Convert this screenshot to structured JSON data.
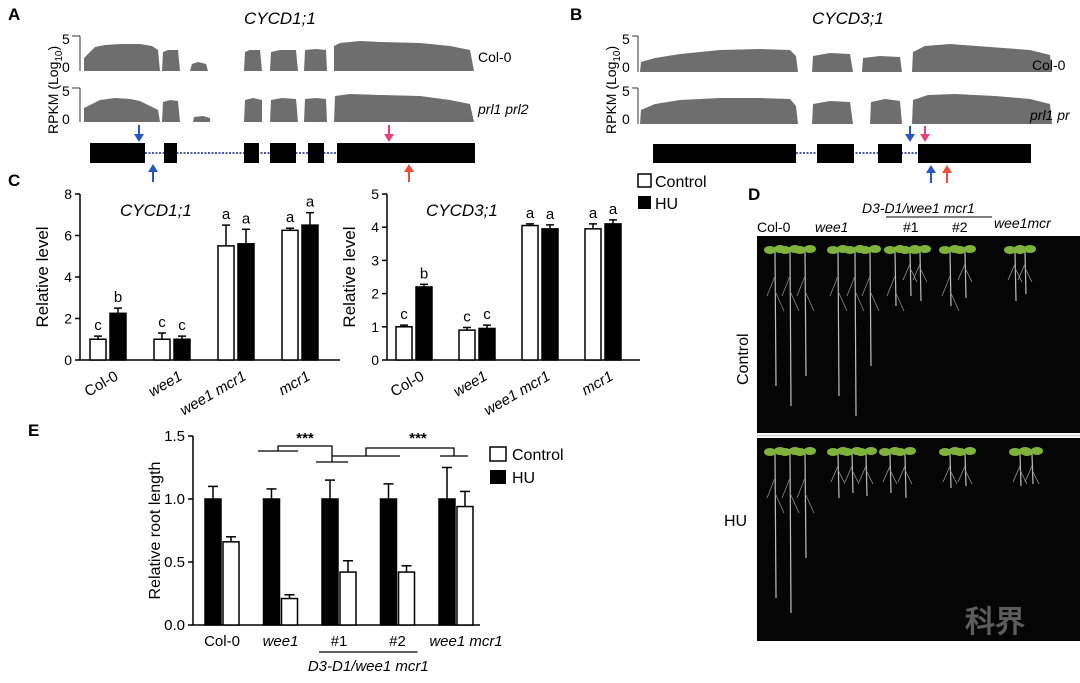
{
  "panels": {
    "A": {
      "label": "A",
      "gene": "CYCD1;1",
      "ylabel": "RPKM (Log10)",
      "ylabel_main": "RPKM (Log",
      "ylabel_sub": "10",
      "ylabel_end": ")",
      "tracks": [
        {
          "name": "Col-0",
          "ymax": "5",
          "ymin": "0"
        },
        {
          "name": "prl1 prl2",
          "ymax": "5",
          "ymin": "0"
        }
      ]
    },
    "B": {
      "label": "B",
      "gene": "CYCD3;1",
      "ylabel": "RPKM (Log10)",
      "ylabel_main": "RPKM (Log",
      "ylabel_sub": "10",
      "ylabel_end": ")",
      "tracks": [
        {
          "name": "Col-0",
          "ymax": "5",
          "ymin": "0"
        },
        {
          "name": "prl1 pr",
          "ymax": "5",
          "ymin": "0"
        }
      ]
    },
    "C": {
      "label": "C"
    },
    "D": {
      "label": "D",
      "group_header": "D3-D1/wee1 mcr1",
      "columns": [
        "Col-0",
        "wee1",
        "#1",
        "#2",
        "wee1mcr"
      ],
      "rows": [
        "Control",
        "HU"
      ]
    },
    "E": {
      "label": "E"
    }
  },
  "legend": {
    "control": "Control",
    "hu": "HU"
  },
  "colors": {
    "control_fill": "#ffffff",
    "hu_fill": "#000000",
    "coverage": "#6e6e6e",
    "photo_bg": "#050505",
    "seedling": "#7fb23a"
  },
  "watermark": "科界",
  "chart_data": [
    {
      "type": "bar",
      "panel": "C-left",
      "title": "CYCD1;1",
      "ylabel": "Relative level",
      "ylim": [
        0,
        8
      ],
      "yticks": [
        "0",
        "2",
        "4",
        "6",
        "8"
      ],
      "categories": [
        "Col-0",
        "wee1",
        "wee1 mcr1",
        "mcr1"
      ],
      "series": [
        {
          "name": "Control",
          "values": [
            1.0,
            1.0,
            5.5,
            6.25
          ],
          "errors": [
            0.15,
            0.3,
            1.0,
            0.1
          ],
          "letters": [
            "c",
            "c",
            "a",
            "a"
          ]
        },
        {
          "name": "HU",
          "values": [
            2.25,
            1.0,
            5.6,
            6.5
          ],
          "errors": [
            0.25,
            0.15,
            0.7,
            0.6
          ],
          "letters": [
            "b",
            "c",
            "a",
            "a"
          ]
        }
      ]
    },
    {
      "type": "bar",
      "panel": "C-right",
      "title": "CYCD3;1",
      "ylabel": "Relative level",
      "ylim": [
        0,
        5
      ],
      "yticks": [
        "0",
        "1",
        "2",
        "3",
        "4",
        "5"
      ],
      "categories": [
        "Col-0",
        "wee1",
        "wee1 mcr1",
        "mcr1"
      ],
      "series": [
        {
          "name": "Control",
          "values": [
            1.0,
            0.9,
            4.05,
            3.95
          ],
          "errors": [
            0.05,
            0.08,
            0.05,
            0.15
          ],
          "letters": [
            "c",
            "c",
            "a",
            "a"
          ]
        },
        {
          "name": "HU",
          "values": [
            2.2,
            0.95,
            3.95,
            4.1
          ],
          "errors": [
            0.08,
            0.1,
            0.12,
            0.12
          ],
          "letters": [
            "b",
            "c",
            "a",
            "a"
          ]
        }
      ]
    },
    {
      "type": "bar",
      "panel": "E",
      "ylabel": "Relative root length",
      "ylim": [
        0,
        1.5
      ],
      "yticks": [
        "0.0",
        "0.5",
        "1.0",
        "1.5"
      ],
      "categories": [
        "Col-0",
        "wee1",
        "#1",
        "#2",
        "wee1 mcr1"
      ],
      "group_label": "D3-D1/wee1 mcr1",
      "significance": "***",
      "series": [
        {
          "name": "HU",
          "values": [
            1.0,
            1.0,
            1.0,
            1.0,
            1.0
          ],
          "errors": [
            0.1,
            0.08,
            0.15,
            0.12,
            0.25
          ]
        },
        {
          "name": "Control",
          "values": [
            0.66,
            0.21,
            0.42,
            0.42,
            0.94
          ],
          "errors": [
            0.04,
            0.03,
            0.09,
            0.05,
            0.12
          ]
        }
      ]
    }
  ]
}
